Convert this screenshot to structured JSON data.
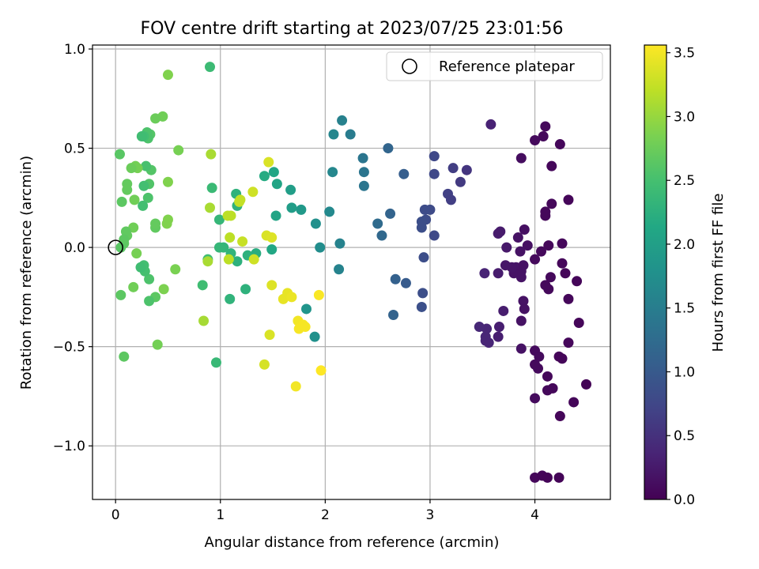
{
  "chart_data": {
    "type": "scatter",
    "title": "FOV centre drift starting at 2023/07/25 23:01:56",
    "xlabel": "Angular distance from reference (arcmin)",
    "ylabel": "Rotation from reference (arcmin)",
    "xlim": [
      -0.22,
      4.72
    ],
    "ylim": [
      -1.27,
      1.02
    ],
    "xticks": [
      0,
      1,
      2,
      3,
      4
    ],
    "xtick_labels": [
      "0",
      "1",
      "2",
      "3",
      "4"
    ],
    "yticks": [
      -1.0,
      -0.5,
      0.0,
      0.5,
      1.0
    ],
    "ytick_labels": [
      "−1.0",
      "−0.5",
      "0.0",
      "0.5",
      "1.0"
    ],
    "grid": true,
    "legend": {
      "position": "top-right",
      "entries": [
        "Reference platepar"
      ]
    },
    "reference_point": {
      "x": 0.0,
      "y": 0.0,
      "label": "Reference platepar"
    },
    "colorbar": {
      "label": "Hours from first FF file",
      "range": [
        0.0,
        3.56
      ],
      "ticks": [
        0.0,
        0.5,
        1.0,
        1.5,
        2.0,
        2.5,
        3.0,
        3.5
      ],
      "tick_labels": [
        "0.0",
        "0.5",
        "1.0",
        "1.5",
        "2.0",
        "2.5",
        "3.0",
        "3.5"
      ],
      "colormap": "viridis"
    },
    "points": [
      {
        "x": 4.0,
        "y": -1.16,
        "c": 0.06
      },
      {
        "x": 4.07,
        "y": -1.15,
        "c": 0.04
      },
      {
        "x": 4.12,
        "y": -1.16,
        "c": 0.03
      },
      {
        "x": 4.23,
        "y": -1.16,
        "c": 0.03
      },
      {
        "x": 4.24,
        "y": -0.85,
        "c": 0.05
      },
      {
        "x": 4.37,
        "y": -0.78,
        "c": 0.05
      },
      {
        "x": 4.49,
        "y": -0.69,
        "c": 0.02
      },
      {
        "x": 4.0,
        "y": -0.76,
        "c": 0.1
      },
      {
        "x": 4.12,
        "y": -0.72,
        "c": 0.08
      },
      {
        "x": 4.17,
        "y": -0.71,
        "c": 0.07
      },
      {
        "x": 4.12,
        "y": -0.65,
        "c": 0.07
      },
      {
        "x": 4.03,
        "y": -0.61,
        "c": 0.09
      },
      {
        "x": 4.0,
        "y": -0.59,
        "c": 0.09
      },
      {
        "x": 4.0,
        "y": -0.52,
        "c": 0.1
      },
      {
        "x": 4.04,
        "y": -0.55,
        "c": 0.1
      },
      {
        "x": 4.23,
        "y": -0.55,
        "c": 0.05
      },
      {
        "x": 4.26,
        "y": -0.56,
        "c": 0.05
      },
      {
        "x": 4.32,
        "y": -0.48,
        "c": 0.06
      },
      {
        "x": 4.42,
        "y": -0.38,
        "c": 0.05
      },
      {
        "x": 4.32,
        "y": -0.26,
        "c": 0.06
      },
      {
        "x": 4.4,
        "y": -0.17,
        "c": 0.05
      },
      {
        "x": 4.29,
        "y": -0.13,
        "c": 0.05
      },
      {
        "x": 4.26,
        "y": -0.08,
        "c": 0.06
      },
      {
        "x": 4.26,
        "y": 0.02,
        "c": 0.06
      },
      {
        "x": 4.13,
        "y": 0.01,
        "c": 0.07
      },
      {
        "x": 4.06,
        "y": -0.02,
        "c": 0.08
      },
      {
        "x": 4.0,
        "y": -0.06,
        "c": 0.09
      },
      {
        "x": 4.13,
        "y": -0.21,
        "c": 0.08
      },
      {
        "x": 4.1,
        "y": -0.19,
        "c": 0.08
      },
      {
        "x": 4.15,
        "y": -0.15,
        "c": 0.08
      },
      {
        "x": 4.16,
        "y": 0.22,
        "c": 0.07
      },
      {
        "x": 4.1,
        "y": 0.16,
        "c": 0.07
      },
      {
        "x": 4.1,
        "y": 0.18,
        "c": 0.07
      },
      {
        "x": 4.32,
        "y": 0.24,
        "c": 0.05
      },
      {
        "x": 4.16,
        "y": 0.41,
        "c": 0.06
      },
      {
        "x": 4.24,
        "y": 0.52,
        "c": 0.06
      },
      {
        "x": 4.0,
        "y": 0.54,
        "c": 0.09
      },
      {
        "x": 4.08,
        "y": 0.56,
        "c": 0.08
      },
      {
        "x": 4.1,
        "y": 0.61,
        "c": 0.08
      },
      {
        "x": 3.87,
        "y": 0.45,
        "c": 0.12
      },
      {
        "x": 3.9,
        "y": 0.09,
        "c": 0.15
      },
      {
        "x": 3.84,
        "y": 0.05,
        "c": 0.17
      },
      {
        "x": 3.93,
        "y": 0.01,
        "c": 0.15
      },
      {
        "x": 3.86,
        "y": -0.02,
        "c": 0.17
      },
      {
        "x": 3.82,
        "y": -0.1,
        "c": 0.2
      },
      {
        "x": 3.87,
        "y": -0.12,
        "c": 0.18
      },
      {
        "x": 3.89,
        "y": -0.09,
        "c": 0.17
      },
      {
        "x": 3.8,
        "y": -0.13,
        "c": 0.18
      },
      {
        "x": 3.78,
        "y": -0.1,
        "c": 0.2
      },
      {
        "x": 3.72,
        "y": -0.09,
        "c": 0.22
      },
      {
        "x": 3.87,
        "y": -0.15,
        "c": 0.18
      },
      {
        "x": 3.89,
        "y": -0.27,
        "c": 0.17
      },
      {
        "x": 3.9,
        "y": -0.31,
        "c": 0.16
      },
      {
        "x": 3.87,
        "y": -0.37,
        "c": 0.17
      },
      {
        "x": 3.87,
        "y": -0.51,
        "c": 0.17
      },
      {
        "x": 3.73,
        "y": -0.0,
        "c": 0.24
      },
      {
        "x": 3.65,
        "y": 0.07,
        "c": 0.27
      },
      {
        "x": 3.67,
        "y": 0.08,
        "c": 0.26
      },
      {
        "x": 3.65,
        "y": -0.13,
        "c": 0.27
      },
      {
        "x": 3.7,
        "y": -0.32,
        "c": 0.28
      },
      {
        "x": 3.66,
        "y": -0.4,
        "c": 0.3
      },
      {
        "x": 3.65,
        "y": -0.45,
        "c": 0.3
      },
      {
        "x": 3.58,
        "y": 0.62,
        "c": 0.34
      },
      {
        "x": 3.52,
        "y": -0.13,
        "c": 0.36
      },
      {
        "x": 3.54,
        "y": -0.41,
        "c": 0.38
      },
      {
        "x": 3.47,
        "y": -0.4,
        "c": 0.4
      },
      {
        "x": 3.53,
        "y": -0.45,
        "c": 0.38
      },
      {
        "x": 3.53,
        "y": -0.47,
        "c": 0.38
      },
      {
        "x": 3.56,
        "y": -0.48,
        "c": 0.37
      },
      {
        "x": 3.35,
        "y": 0.39,
        "c": 0.55
      },
      {
        "x": 3.29,
        "y": 0.33,
        "c": 0.6
      },
      {
        "x": 3.22,
        "y": 0.4,
        "c": 0.64
      },
      {
        "x": 3.17,
        "y": 0.27,
        "c": 0.68
      },
      {
        "x": 3.2,
        "y": 0.24,
        "c": 0.66
      },
      {
        "x": 3.04,
        "y": 0.46,
        "c": 0.76
      },
      {
        "x": 3.04,
        "y": 0.37,
        "c": 0.76
      },
      {
        "x": 3.0,
        "y": 0.19,
        "c": 0.8
      },
      {
        "x": 2.95,
        "y": 0.19,
        "c": 0.82
      },
      {
        "x": 2.96,
        "y": 0.14,
        "c": 0.82
      },
      {
        "x": 2.92,
        "y": 0.13,
        "c": 0.85
      },
      {
        "x": 2.92,
        "y": 0.1,
        "c": 0.85
      },
      {
        "x": 3.04,
        "y": 0.06,
        "c": 0.78
      },
      {
        "x": 2.94,
        "y": -0.05,
        "c": 0.84
      },
      {
        "x": 2.93,
        "y": -0.23,
        "c": 0.85
      },
      {
        "x": 2.92,
        "y": -0.3,
        "c": 0.87
      },
      {
        "x": 2.75,
        "y": 0.37,
        "c": 1.05
      },
      {
        "x": 2.77,
        "y": -0.18,
        "c": 1.02
      },
      {
        "x": 2.67,
        "y": -0.16,
        "c": 1.1
      },
      {
        "x": 2.65,
        "y": -0.34,
        "c": 1.12
      },
      {
        "x": 2.62,
        "y": 0.17,
        "c": 1.14
      },
      {
        "x": 2.6,
        "y": 0.5,
        "c": 1.16
      },
      {
        "x": 2.54,
        "y": 0.06,
        "c": 1.2
      },
      {
        "x": 2.5,
        "y": 0.12,
        "c": 1.24
      },
      {
        "x": 2.36,
        "y": 0.45,
        "c": 1.38
      },
      {
        "x": 2.37,
        "y": 0.38,
        "c": 1.38
      },
      {
        "x": 2.37,
        "y": 0.31,
        "c": 1.38
      },
      {
        "x": 2.24,
        "y": 0.57,
        "c": 1.48
      },
      {
        "x": 2.16,
        "y": 0.64,
        "c": 1.55
      },
      {
        "x": 2.08,
        "y": 0.57,
        "c": 1.62
      },
      {
        "x": 2.07,
        "y": 0.38,
        "c": 1.64
      },
      {
        "x": 2.14,
        "y": 0.02,
        "c": 1.57
      },
      {
        "x": 2.13,
        "y": -0.11,
        "c": 1.58
      },
      {
        "x": 2.04,
        "y": 0.18,
        "c": 1.66
      },
      {
        "x": 1.91,
        "y": 0.12,
        "c": 1.76
      },
      {
        "x": 1.95,
        "y": -0.0,
        "c": 1.73
      },
      {
        "x": 1.9,
        "y": -0.45,
        "c": 1.78
      },
      {
        "x": 1.82,
        "y": -0.31,
        "c": 1.84
      },
      {
        "x": 1.77,
        "y": 0.19,
        "c": 1.9
      },
      {
        "x": 1.68,
        "y": 0.2,
        "c": 1.97
      },
      {
        "x": 1.67,
        "y": 0.29,
        "c": 1.98
      },
      {
        "x": 1.54,
        "y": 0.32,
        "c": 2.08
      },
      {
        "x": 1.53,
        "y": 0.16,
        "c": 2.08
      },
      {
        "x": 1.51,
        "y": 0.38,
        "c": 2.1
      },
      {
        "x": 1.49,
        "y": -0.01,
        "c": 2.12
      },
      {
        "x": 1.42,
        "y": 0.36,
        "c": 2.18
      },
      {
        "x": 1.34,
        "y": -0.03,
        "c": 2.22
      },
      {
        "x": 1.26,
        "y": -0.04,
        "c": 2.26
      },
      {
        "x": 1.24,
        "y": -0.21,
        "c": 2.27
      },
      {
        "x": 1.16,
        "y": 0.21,
        "c": 2.28
      },
      {
        "x": 1.15,
        "y": 0.27,
        "c": 2.28
      },
      {
        "x": 1.16,
        "y": -0.07,
        "c": 2.26
      },
      {
        "x": 1.09,
        "y": -0.26,
        "c": 2.3
      },
      {
        "x": 1.1,
        "y": -0.03,
        "c": 2.3
      },
      {
        "x": 1.03,
        "y": 0.0,
        "c": 2.34
      },
      {
        "x": 0.99,
        "y": 0.0,
        "c": 2.35
      },
      {
        "x": 0.99,
        "y": 0.14,
        "c": 2.35
      },
      {
        "x": 0.96,
        "y": -0.58,
        "c": 2.38
      },
      {
        "x": 0.9,
        "y": 0.91,
        "c": 2.42
      },
      {
        "x": 0.92,
        "y": 0.3,
        "c": 2.4
      },
      {
        "x": 0.88,
        "y": -0.06,
        "c": 2.44
      },
      {
        "x": 0.83,
        "y": -0.19,
        "c": 2.45
      },
      {
        "x": 0.6,
        "y": 0.49,
        "c": 2.82
      },
      {
        "x": 0.57,
        "y": -0.11,
        "c": 2.84
      },
      {
        "x": 0.5,
        "y": 0.87,
        "c": 2.88
      },
      {
        "x": 0.5,
        "y": 0.33,
        "c": 2.88
      },
      {
        "x": 0.5,
        "y": 0.14,
        "c": 2.88
      },
      {
        "x": 0.49,
        "y": 0.12,
        "c": 2.88
      },
      {
        "x": 0.46,
        "y": -0.21,
        "c": 2.86
      },
      {
        "x": 0.45,
        "y": 0.66,
        "c": 2.78
      },
      {
        "x": 0.38,
        "y": 0.65,
        "c": 2.75
      },
      {
        "x": 0.4,
        "y": -0.49,
        "c": 2.8
      },
      {
        "x": 0.38,
        "y": 0.1,
        "c": 2.68
      },
      {
        "x": 0.38,
        "y": 0.12,
        "c": 2.7
      },
      {
        "x": 0.38,
        "y": -0.25,
        "c": 2.65
      },
      {
        "x": 0.34,
        "y": 0.39,
        "c": 2.6
      },
      {
        "x": 0.33,
        "y": 0.57,
        "c": 2.6
      },
      {
        "x": 0.32,
        "y": 0.32,
        "c": 2.58
      },
      {
        "x": 0.31,
        "y": 0.55,
        "c": 2.55
      },
      {
        "x": 0.3,
        "y": 0.58,
        "c": 2.55
      },
      {
        "x": 0.31,
        "y": 0.25,
        "c": 2.55
      },
      {
        "x": 0.32,
        "y": -0.27,
        "c": 2.55
      },
      {
        "x": 0.32,
        "y": -0.16,
        "c": 2.55
      },
      {
        "x": 0.29,
        "y": 0.41,
        "c": 2.52
      },
      {
        "x": 0.28,
        "y": -0.12,
        "c": 2.5
      },
      {
        "x": 0.27,
        "y": 0.56,
        "c": 2.48
      },
      {
        "x": 0.27,
        "y": 0.31,
        "c": 2.48
      },
      {
        "x": 0.27,
        "y": -0.09,
        "c": 2.48
      },
      {
        "x": 0.26,
        "y": 0.21,
        "c": 2.48
      },
      {
        "x": 0.25,
        "y": 0.56,
        "c": 2.45
      },
      {
        "x": 0.24,
        "y": -0.1,
        "c": 2.45
      },
      {
        "x": 0.21,
        "y": 0.4,
        "c": 2.82
      },
      {
        "x": 0.19,
        "y": 0.41,
        "c": 2.8
      },
      {
        "x": 0.2,
        "y": -0.03,
        "c": 2.82
      },
      {
        "x": 0.18,
        "y": 0.24,
        "c": 2.78
      },
      {
        "x": 0.17,
        "y": 0.1,
        "c": 2.78
      },
      {
        "x": 0.17,
        "y": -0.2,
        "c": 2.78
      },
      {
        "x": 0.15,
        "y": 0.4,
        "c": 2.75
      },
      {
        "x": 0.11,
        "y": 0.29,
        "c": 2.7
      },
      {
        "x": 0.11,
        "y": 0.32,
        "c": 2.7
      },
      {
        "x": 0.11,
        "y": 0.06,
        "c": 2.7
      },
      {
        "x": 0.1,
        "y": 0.08,
        "c": 2.68
      },
      {
        "x": 0.08,
        "y": 0.02,
        "c": 2.66
      },
      {
        "x": 0.08,
        "y": 0.04,
        "c": 2.66
      },
      {
        "x": 0.08,
        "y": -0.55,
        "c": 2.66
      },
      {
        "x": 0.06,
        "y": 0.23,
        "c": 2.65
      },
      {
        "x": 0.05,
        "y": -0.24,
        "c": 2.65
      },
      {
        "x": 0.04,
        "y": 0.47,
        "c": 2.63
      },
      {
        "x": 0.05,
        "y": -0.0,
        "c": 2.63
      },
      {
        "x": 0.84,
        "y": -0.37,
        "c": 3.08
      },
      {
        "x": 0.88,
        "y": -0.07,
        "c": 3.1
      },
      {
        "x": 0.9,
        "y": 0.2,
        "c": 3.1
      },
      {
        "x": 0.91,
        "y": 0.47,
        "c": 3.1
      },
      {
        "x": 1.07,
        "y": 0.16,
        "c": 3.2
      },
      {
        "x": 1.08,
        "y": -0.06,
        "c": 3.2
      },
      {
        "x": 1.09,
        "y": 0.05,
        "c": 3.2
      },
      {
        "x": 1.1,
        "y": 0.16,
        "c": 3.2
      },
      {
        "x": 1.18,
        "y": 0.23,
        "c": 3.24
      },
      {
        "x": 1.19,
        "y": 0.24,
        "c": 3.24
      },
      {
        "x": 1.21,
        "y": 0.03,
        "c": 3.26
      },
      {
        "x": 1.31,
        "y": 0.28,
        "c": 3.3
      },
      {
        "x": 1.32,
        "y": -0.06,
        "c": 3.3
      },
      {
        "x": 1.42,
        "y": -0.59,
        "c": 3.34
      },
      {
        "x": 1.44,
        "y": 0.06,
        "c": 3.36
      },
      {
        "x": 1.46,
        "y": 0.43,
        "c": 3.36
      },
      {
        "x": 1.47,
        "y": -0.44,
        "c": 3.36
      },
      {
        "x": 1.49,
        "y": 0.05,
        "c": 3.38
      },
      {
        "x": 1.49,
        "y": -0.19,
        "c": 3.38
      },
      {
        "x": 1.6,
        "y": -0.26,
        "c": 3.44
      },
      {
        "x": 1.64,
        "y": -0.23,
        "c": 3.44
      },
      {
        "x": 1.68,
        "y": -0.25,
        "c": 3.46
      },
      {
        "x": 1.72,
        "y": -0.7,
        "c": 3.5
      },
      {
        "x": 1.74,
        "y": -0.37,
        "c": 3.5
      },
      {
        "x": 1.75,
        "y": -0.41,
        "c": 3.52
      },
      {
        "x": 1.79,
        "y": -0.39,
        "c": 3.52
      },
      {
        "x": 1.81,
        "y": -0.4,
        "c": 3.52
      },
      {
        "x": 1.94,
        "y": -0.24,
        "c": 3.54
      },
      {
        "x": 1.96,
        "y": -0.62,
        "c": 3.56
      }
    ]
  }
}
